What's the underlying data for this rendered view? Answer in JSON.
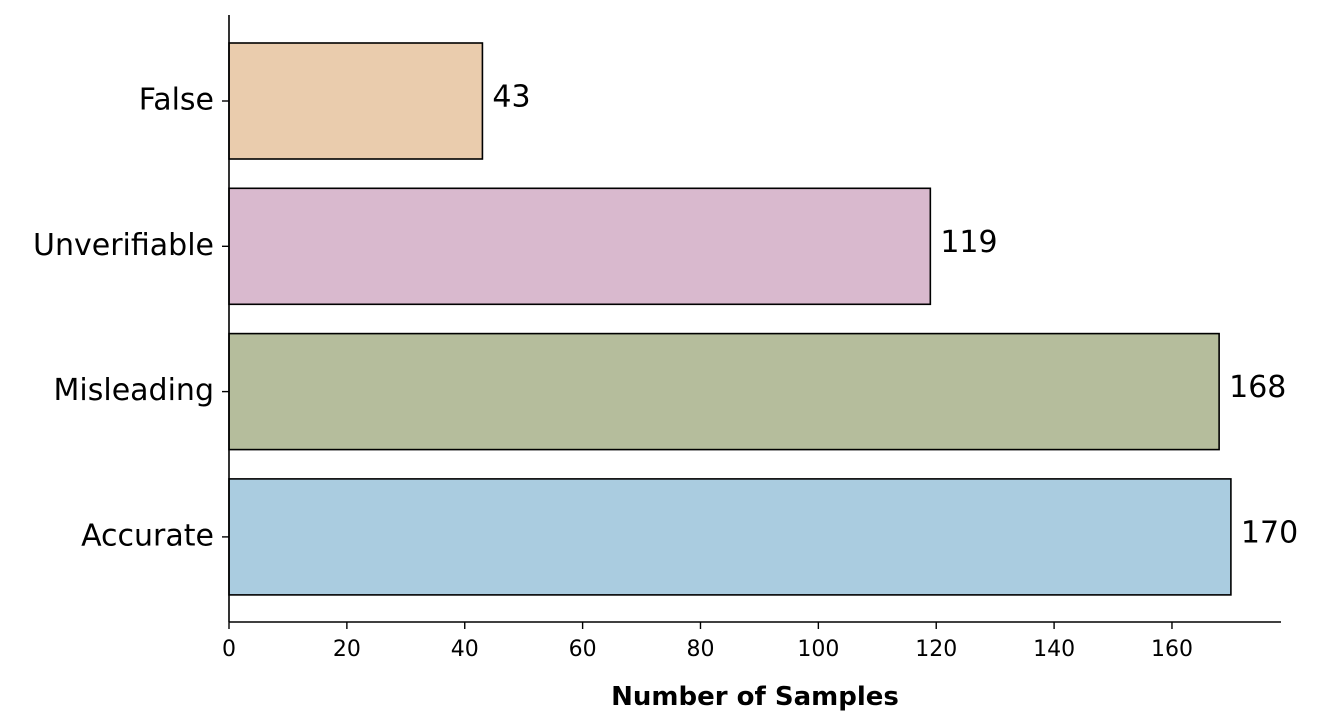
{
  "chart_data": {
    "type": "bar",
    "orientation": "horizontal",
    "categories": [
      "False",
      "Unverifiable",
      "Misleading",
      "Accurate"
    ],
    "values": [
      43,
      119,
      168,
      170
    ],
    "colors": [
      "#EACCAD",
      "#D9B9CE",
      "#B5BD9C",
      "#AACCE0"
    ],
    "title": "",
    "xlabel": "Number of Samples",
    "ylabel": "",
    "xlim": [
      0,
      178.5
    ],
    "xticks": [
      0,
      20,
      40,
      60,
      80,
      100,
      120,
      140,
      160
    ],
    "grid": false,
    "legend": false
  }
}
